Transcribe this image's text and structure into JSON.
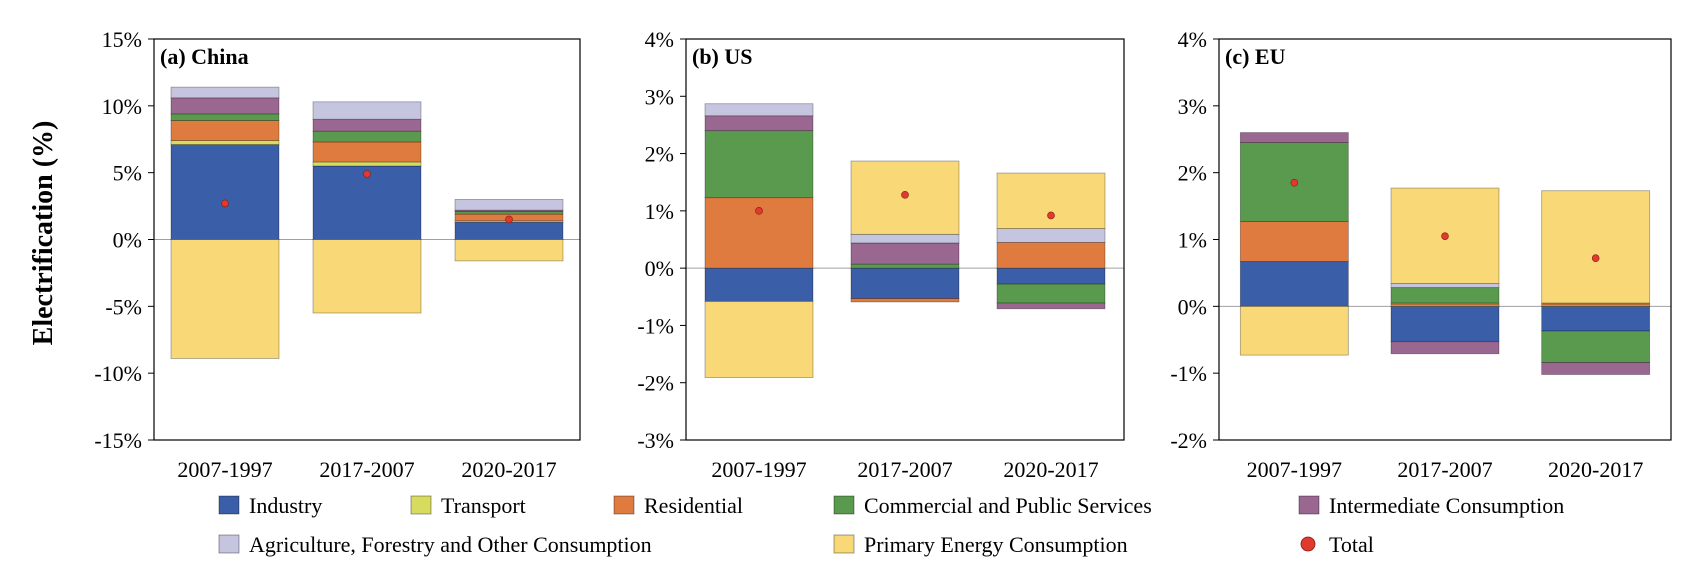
{
  "figure": {
    "ylabel": "Electrification (%)"
  },
  "legend": {
    "items": [
      {
        "key": "industry",
        "label": "Industry"
      },
      {
        "key": "transport",
        "label": "Transport"
      },
      {
        "key": "residential",
        "label": "Residential"
      },
      {
        "key": "commercial",
        "label": "Commercial and Public Services"
      },
      {
        "key": "intermediate",
        "label": "Intermediate Consumption"
      },
      {
        "key": "agriculture",
        "label": "Agriculture, Forestry and Other Consumption"
      },
      {
        "key": "primary",
        "label": "Primary Energy Consumption"
      },
      {
        "key": "total",
        "label": "Total"
      }
    ]
  },
  "colors": {
    "industry": "#3b5ea8",
    "transport": "#d9db5e",
    "residential": "#e07b3f",
    "commercial": "#5a9a4f",
    "intermediate": "#9a6790",
    "agriculture": "#c6c5e0",
    "primary": "#f8d877",
    "total": "#e03a2e"
  },
  "chart_data": [
    {
      "type": "bar",
      "stacked": true,
      "title": "(a) China",
      "categories": [
        "2007-1997",
        "2017-2007",
        "2020-2017"
      ],
      "ylim": [
        -15,
        15
      ],
      "yticks": [
        -15,
        -10,
        -5,
        0,
        5,
        10,
        15
      ],
      "ytick_labels": [
        "-15%",
        "-10%",
        "-5%",
        "0%",
        "5%",
        "10%",
        "15%"
      ],
      "series": [
        {
          "key": "industry",
          "name": "Industry",
          "values": [
            7.1,
            5.5,
            1.3
          ]
        },
        {
          "key": "transport",
          "name": "Transport",
          "values": [
            0.3,
            0.3,
            0.1
          ]
        },
        {
          "key": "residential",
          "name": "Residential",
          "values": [
            1.5,
            1.5,
            0.5
          ]
        },
        {
          "key": "commercial",
          "name": "Commercial and Public Services",
          "values": [
            0.5,
            0.8,
            0.2
          ]
        },
        {
          "key": "intermediate",
          "name": "Intermediate Consumption",
          "values": [
            1.2,
            0.9,
            0.1
          ]
        },
        {
          "key": "agriculture",
          "name": "Agriculture, Forestry and Other Consumption",
          "values": [
            0.8,
            1.3,
            0.8
          ]
        },
        {
          "key": "primary",
          "name": "Primary Energy Consumption",
          "values": [
            -8.9,
            -5.5,
            -1.6
          ]
        }
      ],
      "total": [
        2.7,
        4.9,
        1.5
      ]
    },
    {
      "type": "bar",
      "stacked": true,
      "title": "(b) US",
      "categories": [
        "2007-1997",
        "2017-2007",
        "2020-2017"
      ],
      "ylim": [
        -3,
        4
      ],
      "yticks": [
        -3,
        -2,
        -1,
        0,
        1,
        2,
        3,
        4
      ],
      "ytick_labels": [
        "-3%",
        "-2%",
        "-1%",
        "0%",
        "1%",
        "2%",
        "3%",
        "4%"
      ],
      "series": [
        {
          "key": "industry",
          "name": "Industry",
          "values": [
            -0.58,
            -0.53,
            -0.28
          ]
        },
        {
          "key": "transport",
          "name": "Transport",
          "values": [
            0.0,
            0.0,
            0.0
          ]
        },
        {
          "key": "residential",
          "name": "Residential",
          "values": [
            1.23,
            -0.06,
            0.45
          ]
        },
        {
          "key": "commercial",
          "name": "Commercial and Public Services",
          "values": [
            1.17,
            0.07,
            -0.33
          ]
        },
        {
          "key": "intermediate",
          "name": "Intermediate Consumption",
          "values": [
            0.26,
            0.37,
            -0.1
          ]
        },
        {
          "key": "agriculture",
          "name": "Agriculture, Forestry and Other Consumption",
          "values": [
            0.21,
            0.15,
            0.24
          ]
        },
        {
          "key": "primary",
          "name": "Primary Energy Consumption",
          "values": [
            -1.33,
            1.28,
            0.97
          ]
        }
      ],
      "total": [
        1.0,
        1.28,
        0.92
      ]
    },
    {
      "type": "bar",
      "stacked": true,
      "title": "(c) EU",
      "categories": [
        "2007-1997",
        "2017-2007",
        "2020-2017"
      ],
      "ylim": [
        -2,
        4
      ],
      "yticks": [
        -2,
        -1,
        0,
        1,
        2,
        3,
        4
      ],
      "ytick_labels": [
        "-2%",
        "-1%",
        "0%",
        "1%",
        "2%",
        "3%",
        "4%"
      ],
      "series": [
        {
          "key": "industry",
          "name": "Industry",
          "values": [
            0.67,
            -0.53,
            -0.37
          ]
        },
        {
          "key": "transport",
          "name": "Transport",
          "values": [
            0.0,
            0.02,
            0.02
          ]
        },
        {
          "key": "residential",
          "name": "Residential",
          "values": [
            0.6,
            0.03,
            0.03
          ]
        },
        {
          "key": "commercial",
          "name": "Commercial and Public Services",
          "values": [
            1.18,
            0.23,
            -0.47
          ]
        },
        {
          "key": "intermediate",
          "name": "Intermediate Consumption",
          "values": [
            0.15,
            -0.18,
            -0.18
          ]
        },
        {
          "key": "agriculture",
          "name": "Agriculture, Forestry and Other Consumption",
          "values": [
            0.0,
            0.06,
            0.0
          ]
        },
        {
          "key": "primary",
          "name": "Primary Energy Consumption",
          "values": [
            -0.73,
            1.43,
            1.68
          ]
        }
      ],
      "total": [
        1.85,
        1.05,
        0.72
      ]
    }
  ]
}
